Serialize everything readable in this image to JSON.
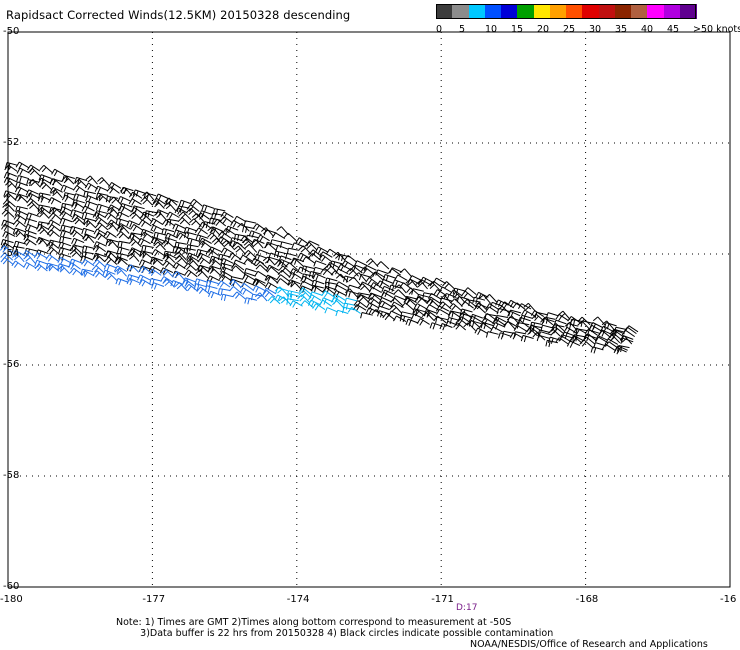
{
  "title": "Rapidsact Corrected Winds(12.5KM) 20150328 descending",
  "legend": {
    "labels": [
      "0",
      "5",
      "10",
      "15",
      "20",
      "25",
      "30",
      "35",
      "40",
      "45",
      ">50 knots"
    ],
    "colors": [
      "#3c3c3c",
      "#8c8c8c",
      "#00c8ff",
      "#0050ff",
      "#0000d8",
      "#00a000",
      "#ffe600",
      "#ffa000",
      "#ff5000",
      "#e00000",
      "#c01010",
      "#8b2500",
      "#b06040",
      "#ff00ff",
      "#b000e0",
      "#600090"
    ]
  },
  "axes": {
    "lon_labels": [
      "-180",
      "-177",
      "-174",
      "-171",
      "-168",
      "-16"
    ],
    "lat_labels": [
      "-50",
      "-52",
      "-54",
      "-56",
      "-58",
      "-60"
    ]
  },
  "map_data": {
    "lon_range": [
      -180,
      -165
    ],
    "lat_range": [
      -60,
      -50
    ],
    "swath": {
      "west_edge": [
        [
          -179.8,
          -52.4
        ],
        [
          -179.9,
          -54.2
        ]
      ],
      "east_edge": [
        [
          -166.4,
          -55.0
        ],
        [
          -166.9,
          -55.8
        ]
      ],
      "rows": 18,
      "wind_colors": {
        "calm": "#00b4f0",
        "light": "#1e6ee6",
        "typical": "#000000"
      }
    }
  },
  "pass_time": "D:17",
  "notes": {
    "line1": "Note: 1) Times are GMT 2)Times along bottom correspond to measurement at -50S",
    "line2": "        3)Data buffer is 22 hrs from 20150328 4) Black circles indicate possible contamination"
  },
  "credit": "NOAA/NESDIS/Office of Research and Applications"
}
